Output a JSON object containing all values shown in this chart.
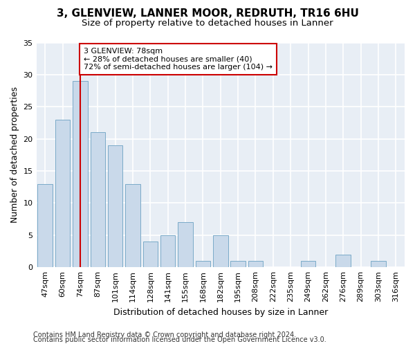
{
  "title1": "3, GLENVIEW, LANNER MOOR, REDRUTH, TR16 6HU",
  "title2": "Size of property relative to detached houses in Lanner",
  "xlabel": "Distribution of detached houses by size in Lanner",
  "ylabel": "Number of detached properties",
  "categories": [
    "47sqm",
    "60sqm",
    "74sqm",
    "87sqm",
    "101sqm",
    "114sqm",
    "128sqm",
    "141sqm",
    "155sqm",
    "168sqm",
    "182sqm",
    "195sqm",
    "208sqm",
    "222sqm",
    "235sqm",
    "249sqm",
    "262sqm",
    "276sqm",
    "289sqm",
    "303sqm",
    "316sqm"
  ],
  "values": [
    13,
    23,
    29,
    21,
    19,
    13,
    4,
    5,
    7,
    1,
    5,
    1,
    1,
    0,
    0,
    1,
    0,
    2,
    0,
    1,
    0
  ],
  "bar_color": "#c9d9ea",
  "bar_edge_color": "#7aaac8",
  "vline_x": 2.0,
  "vline_color": "#cc0000",
  "annotation_text": "3 GLENVIEW: 78sqm\n← 28% of detached houses are smaller (40)\n72% of semi-detached houses are larger (104) →",
  "annotation_box_color": "white",
  "annotation_box_edge": "#cc0000",
  "bg_color": "#e8eef5",
  "grid_color": "white",
  "footer1": "Contains HM Land Registry data © Crown copyright and database right 2024.",
  "footer2": "Contains public sector information licensed under the Open Government Licence v3.0.",
  "ylim": [
    0,
    35
  ],
  "yticks": [
    0,
    5,
    10,
    15,
    20,
    25,
    30,
    35
  ],
  "title1_fontsize": 11,
  "title2_fontsize": 9.5,
  "xlabel_fontsize": 9,
  "ylabel_fontsize": 9,
  "tick_fontsize": 8,
  "annot_fontsize": 8,
  "footer_fontsize": 7
}
